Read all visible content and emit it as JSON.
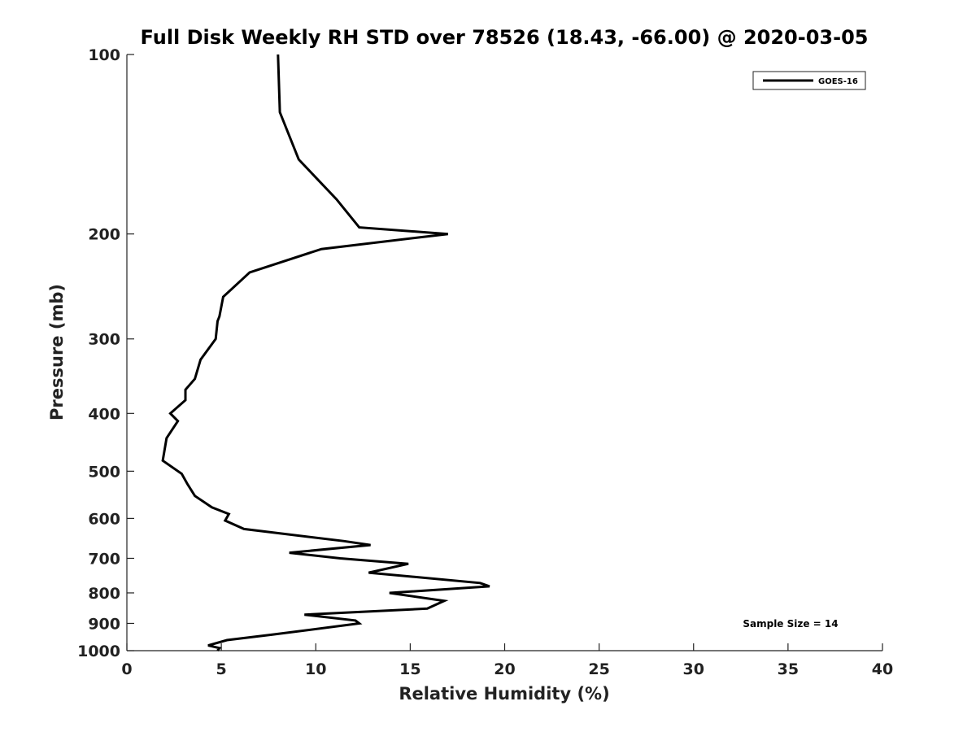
{
  "chart_data": {
    "type": "line",
    "title": "Full Disk Weekly RH STD over 78526 (18.43, -66.00) @ 2020-03-05",
    "xlabel": "Relative Humidity (%)",
    "ylabel": "Pressure (mb)",
    "xlim": [
      0,
      40
    ],
    "ylim": [
      100,
      1000
    ],
    "yscale": "log",
    "yreversed": true,
    "x_ticks": [
      0,
      5,
      10,
      15,
      20,
      25,
      30,
      35,
      40
    ],
    "x_tick_labels": [
      "0",
      "5",
      "10",
      "15",
      "20",
      "25",
      "30",
      "35",
      "40"
    ],
    "y_ticks": [
      100,
      200,
      300,
      400,
      500,
      600,
      700,
      800,
      900,
      1000
    ],
    "y_tick_labels": [
      "100",
      "200",
      "300",
      "400",
      "500",
      "600",
      "700",
      "800",
      "900",
      "1000"
    ],
    "grid": false,
    "legend_position": "top-right",
    "series": [
      {
        "name": "GOES-16",
        "color": "#000000",
        "points": [
          [
            8.0,
            100
          ],
          [
            8.1,
            125
          ],
          [
            9.1,
            150
          ],
          [
            11.1,
            175
          ],
          [
            12.3,
            195
          ],
          [
            17.0,
            200
          ],
          [
            10.3,
            212
          ],
          [
            6.5,
            232
          ],
          [
            5.1,
            255
          ],
          [
            4.9,
            275
          ],
          [
            4.8,
            280
          ],
          [
            4.7,
            300
          ],
          [
            3.9,
            325
          ],
          [
            3.6,
            350
          ],
          [
            3.1,
            365
          ],
          [
            3.1,
            380
          ],
          [
            2.3,
            400
          ],
          [
            2.7,
            412
          ],
          [
            2.1,
            440
          ],
          [
            1.9,
            480
          ],
          [
            2.9,
            505
          ],
          [
            3.2,
            525
          ],
          [
            3.6,
            550
          ],
          [
            4.5,
            575
          ],
          [
            5.4,
            590
          ],
          [
            5.2,
            605
          ],
          [
            6.2,
            625
          ],
          [
            11.5,
            655
          ],
          [
            12.9,
            665
          ],
          [
            8.6,
            685
          ],
          [
            11.3,
            700
          ],
          [
            14.9,
            715
          ],
          [
            12.8,
            740
          ],
          [
            18.7,
            770
          ],
          [
            19.2,
            780
          ],
          [
            13.9,
            800
          ],
          [
            16.8,
            825
          ],
          [
            15.9,
            850
          ],
          [
            9.4,
            870
          ],
          [
            12.1,
            890
          ],
          [
            12.3,
            900
          ],
          [
            7.7,
            940
          ],
          [
            5.3,
            960
          ],
          [
            4.3,
            980
          ],
          [
            4.9,
            990
          ],
          [
            4.8,
            1000
          ]
        ]
      }
    ],
    "annotations": [
      "Sample Size = 14"
    ]
  }
}
